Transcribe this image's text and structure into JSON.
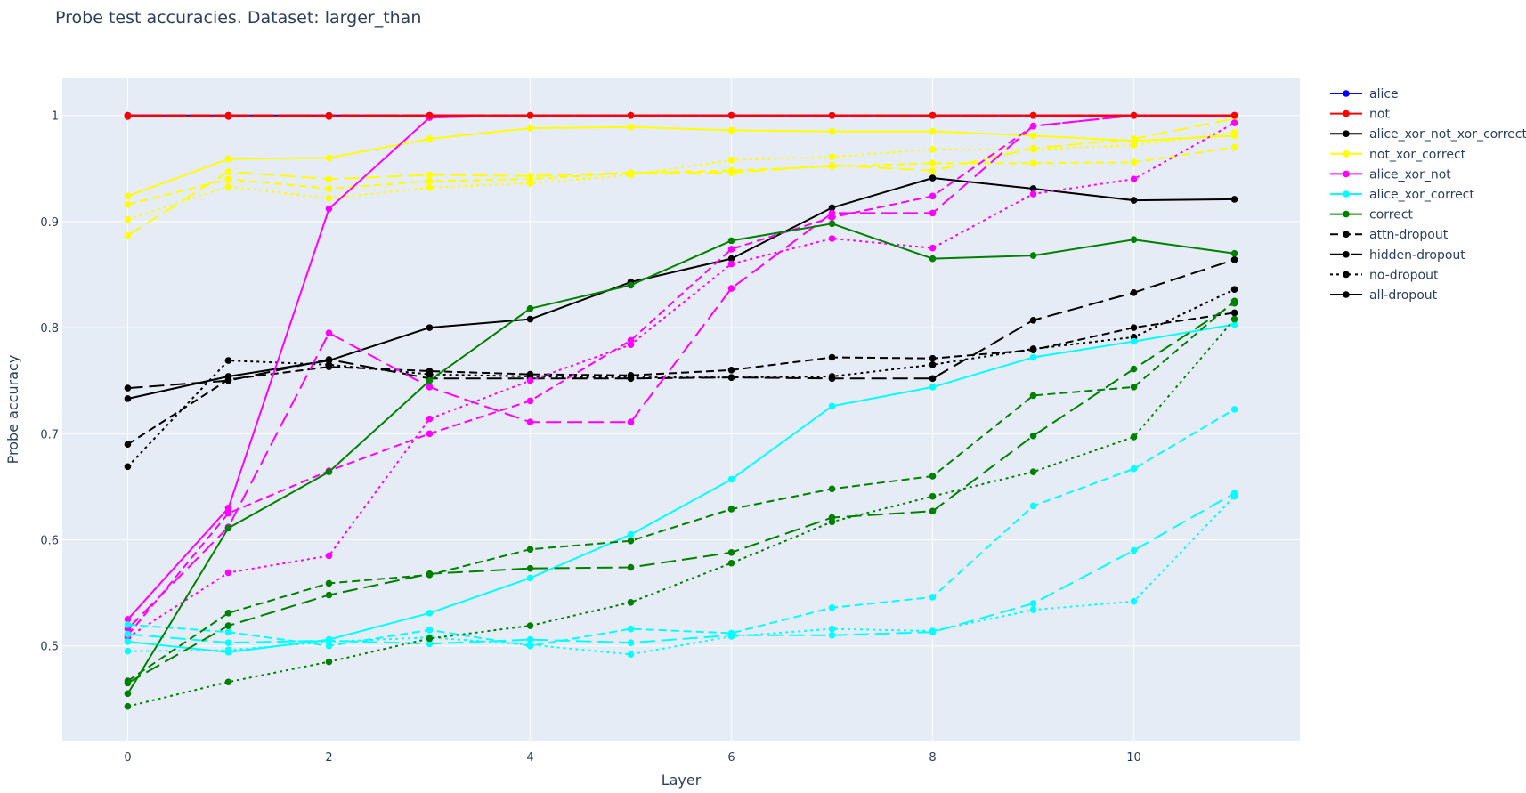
{
  "chart_data": {
    "type": "line",
    "title": "Probe test accuracies. Dataset: larger_than",
    "xlabel": "Layer",
    "ylabel": "Probe accuracy",
    "x": [
      0,
      1,
      2,
      3,
      4,
      5,
      6,
      7,
      8,
      9,
      10,
      11
    ],
    "xlim": [
      -0.65,
      11.65
    ],
    "ylim": [
      0.41,
      1.035
    ],
    "xticks": [
      0,
      2,
      4,
      6,
      8,
      10
    ],
    "xtick_labels": [
      "0",
      "2",
      "4",
      "6",
      "8",
      "10"
    ],
    "yticks": [
      0.5,
      0.6,
      0.7,
      0.8,
      0.9,
      1.0
    ],
    "ytick_labels": [
      "0.5",
      "0.6",
      "0.7",
      "0.8",
      "0.9",
      "1"
    ],
    "grid": true,
    "legend_position": "right",
    "plot_background": "#e5ecf6",
    "legend": {
      "datasets": [
        {
          "name": "alice",
          "color": "#0000ff"
        },
        {
          "name": "not",
          "color": "#ff0000"
        },
        {
          "name": "alice_xor_not_xor_correct",
          "color": "#000000"
        },
        {
          "name": "not_xor_correct",
          "color": "#ffff00"
        },
        {
          "name": "alice_xor_not",
          "color": "#ff00ff"
        },
        {
          "name": "alice_xor_correct",
          "color": "#00ffff"
        },
        {
          "name": "correct",
          "color": "#008000"
        }
      ],
      "dropouts": [
        {
          "name": "attn-dropout",
          "dash": "dash"
        },
        {
          "name": "hidden-dropout",
          "dash": "longdash"
        },
        {
          "name": "no-dropout",
          "dash": "dot"
        },
        {
          "name": "all-dropout",
          "dash": "solid"
        }
      ]
    },
    "series": [
      {
        "dataset": "alice",
        "dropout": "attn-dropout",
        "color": "#0000ff",
        "dash": "dash",
        "values": [
          1,
          1,
          1,
          1,
          1,
          1,
          1,
          1,
          1,
          1,
          1,
          1
        ]
      },
      {
        "dataset": "alice",
        "dropout": "hidden-dropout",
        "color": "#0000ff",
        "dash": "longdash",
        "values": [
          1,
          1,
          1,
          1,
          1,
          1,
          1,
          1,
          1,
          1,
          1,
          1
        ]
      },
      {
        "dataset": "alice",
        "dropout": "no-dropout",
        "color": "#0000ff",
        "dash": "dot",
        "values": [
          1,
          1,
          1,
          1,
          1,
          1,
          1,
          1,
          1,
          1,
          1,
          1
        ]
      },
      {
        "dataset": "alice",
        "dropout": "all-dropout",
        "color": "#0000ff",
        "dash": "solid",
        "values": [
          1,
          1,
          1,
          1,
          1,
          1,
          1,
          1,
          1,
          1,
          1,
          1
        ]
      },
      {
        "dataset": "alice_xor_not_xor_correct",
        "dropout": "attn-dropout",
        "color": "#000000",
        "dash": "dash",
        "values": [
          0.69,
          0.751,
          0.763,
          0.759,
          0.756,
          0.755,
          0.76,
          0.772,
          0.771,
          0.779,
          0.8,
          0.814
        ]
      },
      {
        "dataset": "alice_xor_not_xor_correct",
        "dropout": "hidden-dropout",
        "color": "#000000",
        "dash": "longdash",
        "values": [
          0.743,
          0.75,
          0.77,
          0.752,
          0.752,
          0.752,
          0.753,
          0.752,
          0.752,
          0.807,
          0.833,
          0.864
        ]
      },
      {
        "dataset": "alice_xor_not_xor_correct",
        "dropout": "no-dropout",
        "color": "#000000",
        "dash": "dot",
        "values": [
          0.669,
          0.769,
          0.765,
          0.756,
          0.754,
          0.753,
          0.753,
          0.754,
          0.765,
          0.78,
          0.791,
          0.836
        ]
      },
      {
        "dataset": "alice_xor_not_xor_correct",
        "dropout": "all-dropout",
        "color": "#000000",
        "dash": "solid",
        "values": [
          0.733,
          0.754,
          0.769,
          0.8,
          0.808,
          0.843,
          0.865,
          0.913,
          0.941,
          0.931,
          0.92,
          0.921
        ]
      },
      {
        "dataset": "not_xor_correct",
        "dropout": "attn-dropout",
        "color": "#ffff00",
        "dash": "dash",
        "values": [
          0.916,
          0.94,
          0.931,
          0.938,
          0.94,
          0.946,
          0.948,
          0.952,
          0.955,
          0.955,
          0.956,
          0.97
        ]
      },
      {
        "dataset": "not_xor_correct",
        "dropout": "hidden-dropout",
        "color": "#ffff00",
        "dash": "longdash",
        "values": [
          0.887,
          0.947,
          0.94,
          0.944,
          0.943,
          0.946,
          0.946,
          0.953,
          0.948,
          0.969,
          0.978,
          0.997
        ]
      },
      {
        "dataset": "not_xor_correct",
        "dropout": "no-dropout",
        "color": "#ffff00",
        "dash": "dot",
        "values": [
          0.902,
          0.933,
          0.922,
          0.932,
          0.936,
          0.944,
          0.958,
          0.961,
          0.968,
          0.968,
          0.972,
          0.984
        ]
      },
      {
        "dataset": "not_xor_correct",
        "dropout": "all-dropout",
        "color": "#ffff00",
        "dash": "solid",
        "values": [
          0.924,
          0.959,
          0.96,
          0.978,
          0.988,
          0.989,
          0.986,
          0.985,
          0.985,
          0.981,
          0.976,
          0.981
        ]
      },
      {
        "dataset": "alice_xor_not",
        "dropout": "attn-dropout",
        "color": "#ff00ff",
        "dash": "dash",
        "values": [
          0.51,
          0.625,
          0.665,
          0.7,
          0.731,
          0.788,
          0.874,
          0.904,
          0.924,
          0.99,
          1,
          1
        ]
      },
      {
        "dataset": "alice_xor_not",
        "dropout": "hidden-dropout",
        "color": "#ff00ff",
        "dash": "longdash",
        "values": [
          0.516,
          0.612,
          0.795,
          0.744,
          0.711,
          0.711,
          0.837,
          0.908,
          0.908,
          0.99,
          1,
          1
        ]
      },
      {
        "dataset": "alice_xor_not",
        "dropout": "no-dropout",
        "color": "#ff00ff",
        "dash": "dot",
        "values": [
          0.508,
          0.569,
          0.585,
          0.714,
          0.75,
          0.784,
          0.86,
          0.884,
          0.875,
          0.926,
          0.94,
          0.993
        ]
      },
      {
        "dataset": "alice_xor_not",
        "dropout": "all-dropout",
        "color": "#ff00ff",
        "dash": "solid",
        "values": [
          0.525,
          0.63,
          0.912,
          0.998,
          1,
          1,
          1,
          1,
          1,
          1,
          1,
          1
        ]
      },
      {
        "dataset": "alice_xor_correct",
        "dropout": "attn-dropout",
        "color": "#00ffff",
        "dash": "dash",
        "values": [
          0.52,
          0.513,
          0.5,
          0.515,
          0.5,
          0.516,
          0.512,
          0.536,
          0.546,
          0.632,
          0.667,
          0.723
        ]
      },
      {
        "dataset": "alice_xor_correct",
        "dropout": "hidden-dropout",
        "color": "#00ffff",
        "dash": "longdash",
        "values": [
          0.511,
          0.503,
          0.505,
          0.502,
          0.506,
          0.503,
          0.51,
          0.51,
          0.513,
          0.54,
          0.59,
          0.644
        ]
      },
      {
        "dataset": "alice_xor_correct",
        "dropout": "no-dropout",
        "color": "#00ffff",
        "dash": "dot",
        "values": [
          0.495,
          0.496,
          0.504,
          0.508,
          0.501,
          0.492,
          0.509,
          0.516,
          0.514,
          0.534,
          0.542,
          0.641
        ]
      },
      {
        "dataset": "alice_xor_correct",
        "dropout": "all-dropout",
        "color": "#00ffff",
        "dash": "solid",
        "values": [
          0.504,
          0.494,
          0.506,
          0.531,
          0.564,
          0.605,
          0.657,
          0.726,
          0.744,
          0.772,
          0.787,
          0.803
        ]
      },
      {
        "dataset": "correct",
        "dropout": "attn-dropout",
        "color": "#008000",
        "dash": "dash",
        "values": [
          0.467,
          0.531,
          0.559,
          0.567,
          0.591,
          0.599,
          0.629,
          0.648,
          0.66,
          0.736,
          0.744,
          0.825
        ]
      },
      {
        "dataset": "correct",
        "dropout": "hidden-dropout",
        "color": "#008000",
        "dash": "longdash",
        "values": [
          0.465,
          0.519,
          0.548,
          0.568,
          0.573,
          0.574,
          0.588,
          0.621,
          0.627,
          0.698,
          0.761,
          0.823
        ]
      },
      {
        "dataset": "correct",
        "dropout": "no-dropout",
        "color": "#008000",
        "dash": "dot",
        "values": [
          0.443,
          0.466,
          0.485,
          0.507,
          0.519,
          0.541,
          0.578,
          0.617,
          0.641,
          0.664,
          0.697,
          0.808
        ]
      },
      {
        "dataset": "correct",
        "dropout": "all-dropout",
        "color": "#008000",
        "dash": "solid",
        "values": [
          0.455,
          0.611,
          0.664,
          0.75,
          0.818,
          0.84,
          0.882,
          0.898,
          0.865,
          0.868,
          0.883,
          0.87
        ]
      },
      {
        "dataset": "not",
        "dropout": "attn-dropout",
        "color": "#ff0000",
        "dash": "dash",
        "values": [
          1,
          1,
          1,
          1,
          1,
          1,
          1,
          1,
          1,
          1,
          1,
          1
        ]
      },
      {
        "dataset": "not",
        "dropout": "hidden-dropout",
        "color": "#ff0000",
        "dash": "longdash",
        "values": [
          1,
          1,
          1,
          1,
          1,
          1,
          1,
          1,
          1,
          1,
          1,
          1
        ]
      },
      {
        "dataset": "not",
        "dropout": "no-dropout",
        "color": "#ff0000",
        "dash": "dot",
        "values": [
          1,
          1,
          1,
          1,
          1,
          1,
          1,
          1,
          1,
          1,
          1,
          1
        ]
      },
      {
        "dataset": "not",
        "dropout": "all-dropout",
        "color": "#ff0000",
        "dash": "solid",
        "values": [
          0.999,
          0.999,
          0.999,
          1,
          1,
          1,
          1,
          1,
          1,
          1,
          1,
          1
        ]
      }
    ]
  }
}
